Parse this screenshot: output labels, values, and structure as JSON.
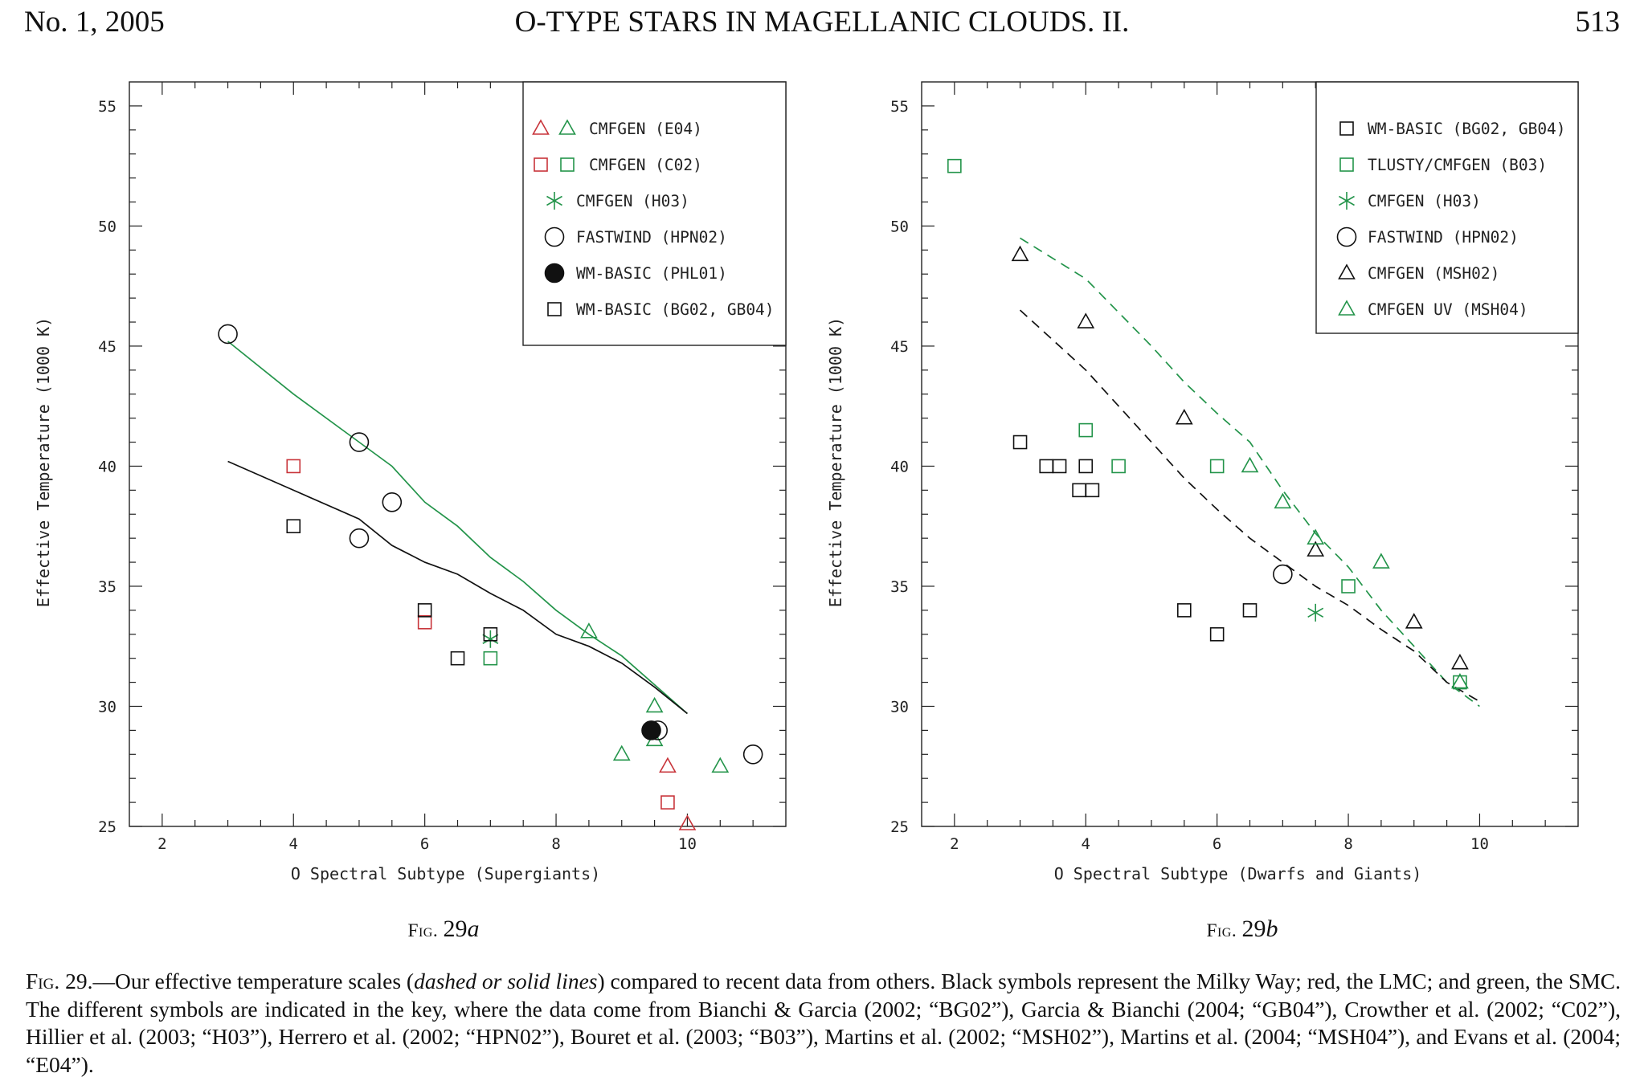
{
  "header": {
    "left": "No. 1, 2005",
    "center": "O-TYPE STARS IN MAGELLANIC CLOUDS. II.",
    "right": "513"
  },
  "colors": {
    "black": "#111111",
    "red": "#c8343a",
    "green": "#23944a"
  },
  "chart_data": [
    {
      "type": "scatter",
      "figure_label_prefix": "Fig. ",
      "figure_label_number": "29",
      "figure_label_letter": "a",
      "xlabel": "O Spectral Subtype (Supergiants)",
      "ylabel": "Effective Temperature (1000 K)",
      "xlim": [
        1.5,
        11.5
      ],
      "ylim": [
        25,
        56
      ],
      "xticks": [
        2,
        4,
        6,
        8,
        10
      ],
      "yticks": [
        25,
        30,
        35,
        40,
        45,
        50,
        55
      ],
      "legend_position": "top-right",
      "legend": [
        {
          "label": "CMFGEN (E04)",
          "markers": [
            "triangle-red",
            "triangle-green"
          ]
        },
        {
          "label": "CMFGEN (C02)",
          "markers": [
            "square-red",
            "square-green"
          ]
        },
        {
          "label": "CMFGEN (H03)",
          "markers": [
            "star-green"
          ]
        },
        {
          "label": "FASTWIND (HPN02)",
          "markers": [
            "circle-black"
          ]
        },
        {
          "label": "WM-BASIC (PHL01)",
          "markers": [
            "filled-circle-black"
          ]
        },
        {
          "label": "WM-BASIC (BG02, GB04)",
          "markers": [
            "square-black"
          ]
        }
      ],
      "lines": [
        {
          "color": "green",
          "style": "solid",
          "x": [
            3,
            4,
            5,
            5.5,
            6,
            6.5,
            7,
            7.5,
            8,
            8.5,
            9,
            9.5,
            10
          ],
          "y": [
            45.2,
            43,
            41,
            40,
            38.5,
            37.5,
            36.2,
            35.2,
            34,
            33,
            32.1,
            30.9,
            29.7
          ]
        },
        {
          "color": "black",
          "style": "solid",
          "x": [
            3,
            4,
            5,
            5.5,
            6,
            6.5,
            7,
            7.5,
            8,
            8.5,
            9,
            9.5,
            10
          ],
          "y": [
            40.2,
            39,
            37.8,
            36.7,
            36,
            35.5,
            34.7,
            34,
            33,
            32.5,
            31.8,
            30.8,
            29.7
          ]
        }
      ],
      "series": [
        {
          "marker": "triangle",
          "color": "red",
          "points": [
            [
              9.7,
              27.5
            ],
            [
              10,
              25.1
            ]
          ]
        },
        {
          "marker": "triangle",
          "color": "green",
          "points": [
            [
              8.5,
              33.1
            ],
            [
              9,
              28
            ],
            [
              9.5,
              30
            ],
            [
              9.5,
              28.6
            ],
            [
              10.5,
              27.5
            ]
          ]
        },
        {
          "marker": "square",
          "color": "red",
          "points": [
            [
              4,
              40
            ],
            [
              6,
              33.5
            ],
            [
              9.7,
              26
            ]
          ]
        },
        {
          "marker": "square",
          "color": "green",
          "points": [
            [
              7,
              32
            ]
          ]
        },
        {
          "marker": "star",
          "color": "green",
          "points": [
            [
              7,
              32.8
            ]
          ]
        },
        {
          "marker": "circle",
          "color": "black",
          "points": [
            [
              3,
              45.5
            ],
            [
              5,
              41
            ],
            [
              5.5,
              38.5
            ],
            [
              5,
              37
            ],
            [
              9.55,
              29
            ],
            [
              11,
              28
            ]
          ]
        },
        {
          "marker": "filled-circle",
          "color": "black",
          "points": [
            [
              9.45,
              29
            ]
          ]
        },
        {
          "marker": "square",
          "color": "black",
          "points": [
            [
              4,
              37.5
            ],
            [
              6,
              34
            ],
            [
              6.5,
              32
            ],
            [
              7,
              33
            ]
          ]
        }
      ]
    },
    {
      "type": "scatter",
      "figure_label_prefix": "Fig. ",
      "figure_label_number": "29",
      "figure_label_letter": "b",
      "xlabel": "O Spectral Subtype (Dwarfs and Giants)",
      "ylabel": "Effective Temperature (1000 K)",
      "xlim": [
        1.5,
        11.5
      ],
      "ylim": [
        25,
        56
      ],
      "xticks": [
        2,
        4,
        6,
        8,
        10
      ],
      "yticks": [
        25,
        30,
        35,
        40,
        45,
        50,
        55
      ],
      "legend_position": "top-right",
      "legend": [
        {
          "label": "WM-BASIC (BG02, GB04)",
          "markers": [
            "square-black"
          ]
        },
        {
          "label": "TLUSTY/CMFGEN (B03)",
          "markers": [
            "square-green"
          ]
        },
        {
          "label": "CMFGEN (H03)",
          "markers": [
            "star-green"
          ]
        },
        {
          "label": "FASTWIND (HPN02)",
          "markers": [
            "circle-black"
          ]
        },
        {
          "label": "CMFGEN (MSH02)",
          "markers": [
            "triangle-black"
          ]
        },
        {
          "label": "CMFGEN UV (MSH04)",
          "markers": [
            "triangle-green"
          ]
        }
      ],
      "lines": [
        {
          "color": "green",
          "style": "dashed",
          "x": [
            3,
            4,
            5,
            5.5,
            6,
            6.5,
            7,
            7.5,
            8,
            8.5,
            9,
            9.5,
            10
          ],
          "y": [
            49.5,
            47.8,
            45,
            43.5,
            42.2,
            41,
            39,
            37.2,
            35.8,
            34,
            32.5,
            31,
            30
          ]
        },
        {
          "color": "black",
          "style": "dashed",
          "x": [
            3,
            4,
            5,
            5.5,
            6,
            6.5,
            7,
            7.5,
            8,
            8.5,
            9,
            9.5,
            10
          ],
          "y": [
            46.5,
            44,
            41,
            39.5,
            38.2,
            37,
            36,
            35,
            34.2,
            33.2,
            32.3,
            31,
            30.2
          ]
        }
      ],
      "series": [
        {
          "marker": "square",
          "color": "black",
          "points": [
            [
              3,
              41
            ],
            [
              3.4,
              40
            ],
            [
              3.6,
              40
            ],
            [
              4,
              40
            ],
            [
              3.9,
              39
            ],
            [
              4.1,
              39
            ],
            [
              5.5,
              34
            ],
            [
              6,
              33
            ],
            [
              6.5,
              34
            ]
          ]
        },
        {
          "marker": "square",
          "color": "green",
          "points": [
            [
              2,
              52.5
            ],
            [
              4,
              41.5
            ],
            [
              4.5,
              40
            ],
            [
              6,
              40
            ],
            [
              8,
              35
            ],
            [
              9.7,
              31
            ]
          ]
        },
        {
          "marker": "star",
          "color": "green",
          "points": [
            [
              7.5,
              33.9
            ]
          ]
        },
        {
          "marker": "circle",
          "color": "black",
          "points": [
            [
              7,
              35.5
            ]
          ]
        },
        {
          "marker": "triangle",
          "color": "black",
          "points": [
            [
              3,
              48.8
            ],
            [
              4,
              46
            ],
            [
              5.5,
              42
            ],
            [
              7.5,
              36.5
            ],
            [
              9,
              33.5
            ],
            [
              9.7,
              31.8
            ]
          ]
        },
        {
          "marker": "triangle",
          "color": "green",
          "points": [
            [
              6.5,
              40
            ],
            [
              7,
              38.5
            ],
            [
              7.5,
              37
            ],
            [
              8.5,
              36
            ],
            [
              9.7,
              31
            ]
          ]
        }
      ]
    }
  ],
  "caption": {
    "lead_small_caps": "Fig. 29.",
    "p1": "—Our effective temperature scales (",
    "italic1": "dashed or solid lines",
    "p2": ") compared to recent data from others. Black symbols represent the Milky Way; red, the LMC; and green, the SMC. The different symbols are indicated in the key, where the data come from Bianchi & Garcia (2002; “BG02”), Garcia & Bianchi (2004; “GB04”), Crowther et al. (2002; “C02”), Hillier et al. (2003; “H03”), Herrero et al. (2002; “HPN02”), Bouret et al. (2003; “B03”), Martins et al. (2002; “MSH02”), Martins et al. (2004; “MSH04”), and Evans et al. (2004; “E04”)."
  }
}
